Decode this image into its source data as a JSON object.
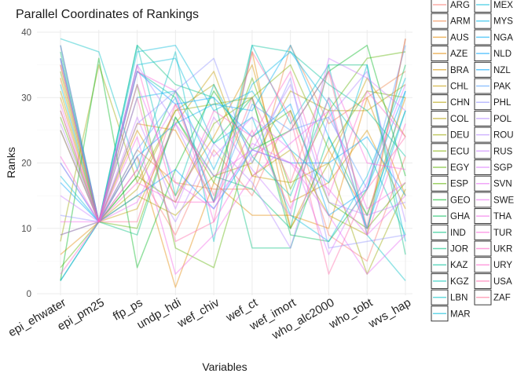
{
  "chart_data": {
    "type": "parallel_coordinates",
    "title": "Parallel Coordinates of Rankings",
    "xlabel": "Variables",
    "ylabel": "Ranks",
    "ylim": [
      0,
      40
    ],
    "yticks": [
      0,
      10,
      20,
      30,
      40
    ],
    "grid": true,
    "legend_position": "right",
    "variables": [
      "epi_ehwater",
      "epi_pm25",
      "ffp_ps",
      "undp_hdi",
      "wef_chiv",
      "wef_ct",
      "wef_imort",
      "who_alc2000",
      "who_tobt",
      "wvs_hap"
    ],
    "legend_entries": [
      "ARG",
      "ARM",
      "AUS",
      "AZE",
      "BRA",
      "CHL",
      "CHN",
      "COL",
      "DEU",
      "ECU",
      "EGY",
      "ESP",
      "GEO",
      "GHA",
      "IND",
      "JOR",
      "KAZ",
      "KGZ",
      "LBN",
      "MAR",
      "MEX",
      "MYS",
      "NGA",
      "NLD",
      "NZL",
      "PAK",
      "PHL",
      "POL",
      "ROU",
      "RUS",
      "SGP",
      "SVN",
      "SWE",
      "THA",
      "TUR",
      "UKR",
      "URY",
      "USA",
      "ZAF"
    ],
    "series": [
      {
        "name": "ARG",
        "values": [
          38,
          11,
          19,
          9,
          22,
          15,
          28,
          9,
          5,
          21
        ]
      },
      {
        "name": "ARM",
        "values": [
          36,
          11,
          22,
          17,
          16,
          16,
          38,
          26,
          30,
          34
        ]
      },
      {
        "name": "AUS",
        "values": [
          6,
          11,
          21,
          1,
          17,
          12,
          12,
          10,
          30,
          15
        ]
      },
      {
        "name": "AZE",
        "values": [
          33,
          11,
          26,
          25,
          14,
          37,
          10,
          22,
          12,
          30
        ]
      },
      {
        "name": "BRA",
        "values": [
          30,
          11,
          25,
          15,
          24,
          35,
          14,
          17,
          25,
          13
        ]
      },
      {
        "name": "CHL",
        "values": [
          35,
          11,
          13,
          26,
          34,
          18,
          17,
          20,
          33,
          24
        ]
      },
      {
        "name": "CHN",
        "values": [
          28,
          11,
          16,
          28,
          32,
          18,
          22,
          12,
          9,
          39
        ]
      },
      {
        "name": "COL",
        "values": [
          31,
          11,
          15,
          12,
          18,
          20,
          31,
          28,
          28,
          32
        ]
      },
      {
        "name": "DEU",
        "values": [
          8,
          35,
          17,
          28,
          29,
          30,
          10,
          20,
          3,
          16
        ]
      },
      {
        "name": "ECU",
        "values": [
          34,
          11,
          18,
          14,
          26,
          30,
          35,
          22,
          31,
          30
        ]
      },
      {
        "name": "EGY",
        "values": [
          27,
          11,
          32,
          7,
          4,
          24,
          28,
          14,
          10,
          17
        ]
      },
      {
        "name": "ESP",
        "values": [
          4,
          11,
          10,
          27,
          17,
          33,
          16,
          28,
          36,
          37
        ]
      },
      {
        "name": "GEO",
        "values": [
          2,
          36,
          4,
          19,
          31,
          22,
          25,
          34,
          38,
          18
        ]
      },
      {
        "name": "GHA",
        "values": [
          25,
          11,
          18,
          31,
          23,
          30,
          9,
          8,
          16,
          35
        ]
      },
      {
        "name": "IND",
        "values": [
          37,
          11,
          38,
          32,
          30,
          7,
          7,
          24,
          12,
          28
        ]
      },
      {
        "name": "JOR",
        "values": [
          2,
          11,
          9,
          27,
          18,
          16,
          10,
          35,
          35,
          6
        ]
      },
      {
        "name": "KAZ",
        "values": [
          9,
          11,
          34,
          30,
          14,
          38,
          37,
          32,
          28,
          21
        ]
      },
      {
        "name": "KGZ",
        "values": [
          36,
          11,
          38,
          15,
          32,
          21,
          15,
          30,
          22,
          9
        ]
      },
      {
        "name": "LBN",
        "values": [
          39,
          37,
          19,
          37,
          8,
          38,
          26,
          35,
          9,
          2
        ]
      },
      {
        "name": "MAR",
        "values": [
          32,
          11,
          37,
          38,
          28,
          31,
          22,
          17,
          35,
          8
        ]
      },
      {
        "name": "MEX",
        "values": [
          18,
          11,
          35,
          36,
          23,
          27,
          12,
          8,
          18,
          33
        ]
      },
      {
        "name": "MYS",
        "values": [
          20,
          11,
          30,
          31,
          19,
          32,
          37,
          29,
          10,
          31
        ]
      },
      {
        "name": "NGA",
        "values": [
          2,
          11,
          21,
          26,
          29,
          28,
          38,
          24,
          10,
          28
        ]
      },
      {
        "name": "NLD",
        "values": [
          38,
          11,
          34,
          29,
          30,
          24,
          29,
          12,
          16,
          31
        ]
      },
      {
        "name": "NZL",
        "values": [
          17,
          11,
          15,
          19,
          13,
          22,
          20,
          20,
          24,
          15
        ]
      },
      {
        "name": "PAK",
        "values": [
          36,
          11,
          22,
          30,
          14,
          29,
          25,
          27,
          16,
          38
        ]
      },
      {
        "name": "PHL",
        "values": [
          12,
          11,
          26,
          31,
          36,
          20,
          33,
          7,
          8,
          9
        ]
      },
      {
        "name": "POL",
        "values": [
          36,
          11,
          35,
          26,
          14,
          22,
          32,
          14,
          12,
          14
        ]
      },
      {
        "name": "ROU",
        "values": [
          26,
          11,
          21,
          11,
          23,
          17,
          7,
          27,
          34,
          11
        ]
      },
      {
        "name": "RUS",
        "values": [
          15,
          11,
          27,
          13,
          27,
          19,
          12,
          36,
          33,
          28
        ]
      },
      {
        "name": "SGP",
        "values": [
          20,
          11,
          19,
          29,
          21,
          27,
          22,
          6,
          17,
          32
        ]
      },
      {
        "name": "SVN",
        "values": [
          28,
          11,
          32,
          17,
          13,
          23,
          20,
          16,
          9,
          15
        ]
      },
      {
        "name": "SWE",
        "values": [
          29,
          11,
          14,
          26,
          18,
          22,
          20,
          12,
          3,
          9
        ]
      },
      {
        "name": "THA",
        "values": [
          11,
          11,
          24,
          3,
          9,
          18,
          23,
          28,
          13,
          17
        ]
      },
      {
        "name": "TUR",
        "values": [
          21,
          11,
          34,
          31,
          11,
          21,
          25,
          34,
          20,
          19
        ]
      },
      {
        "name": "UKR",
        "values": [
          9,
          11,
          35,
          14,
          28,
          24,
          34,
          15,
          31,
          24
        ]
      },
      {
        "name": "URY",
        "values": [
          3,
          11,
          17,
          14,
          14,
          25,
          13,
          30,
          9,
          26
        ]
      },
      {
        "name": "USA",
        "values": [
          35,
          11,
          30,
          8,
          11,
          37,
          27,
          3,
          16,
          24
        ]
      },
      {
        "name": "ZAF",
        "values": [
          25,
          11,
          11,
          29,
          15,
          30,
          17,
          34,
          10,
          39
        ]
      }
    ]
  },
  "colors": {
    "palette": [
      "#F8766D",
      "#EE8043",
      "#E38900",
      "#D39200",
      "#C49A00",
      "#B09F00",
      "#99A800",
      "#7FAE00",
      "#5BB300",
      "#00B81F",
      "#00BC59",
      "#00BF7D",
      "#00C19A",
      "#00C1B3",
      "#00BFC4",
      "#00BAD8",
      "#00B4E7",
      "#00ACF3",
      "#00A3FC",
      "#529EFF",
      "#8F91FF",
      "#B185FF",
      "#C77CFF",
      "#D874FD",
      "#E76BF3",
      "#F265E7",
      "#FA62DB",
      "#FF61C9",
      "#FF66A8",
      "#FD6D91"
    ],
    "grid": "#ebebeb"
  }
}
